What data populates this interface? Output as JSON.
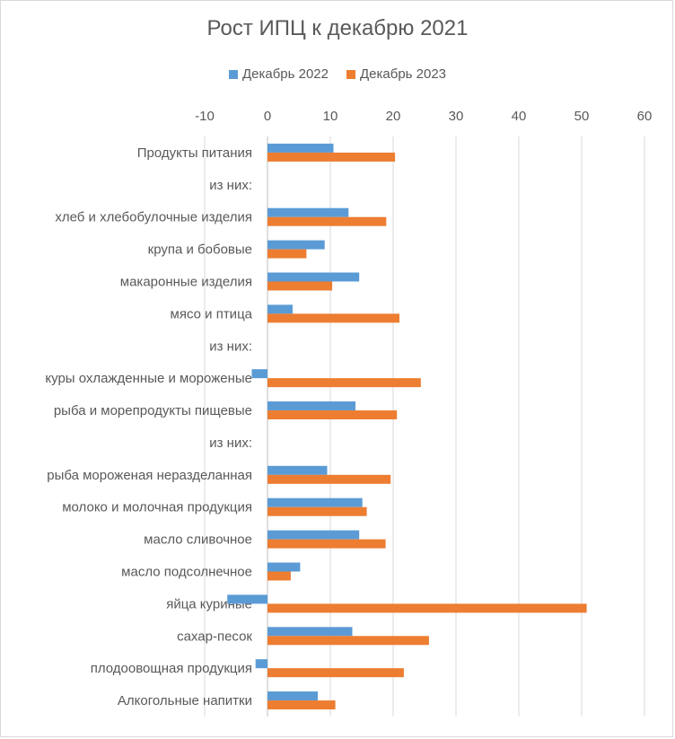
{
  "chart_data": {
    "type": "bar",
    "orientation": "horizontal",
    "title": "Рост ИПЦ к декабрю  2021",
    "xlabel": "",
    "ylabel": "",
    "xlim": [
      -10,
      60
    ],
    "ticks": [
      -10,
      0,
      10,
      20,
      30,
      40,
      50,
      60
    ],
    "grid": true,
    "legend_position": "top",
    "categories": [
      "Продукты питания",
      "из них:",
      "хлеб и хлебобулочные изделия",
      "крупа и бобовые",
      "макаронные изделия",
      "мясо и птица",
      "из них:",
      "куры охлажденные и мороженые",
      "рыба и морепродукты пищевые",
      "из них:",
      "рыба мороженая неразделанная",
      "молоко и молочная продукция",
      "масло сливочное",
      "масло подсолнечное",
      "яйца куриные",
      "сахар-песок",
      "плодоовощная продукция",
      "Алкогольные напитки"
    ],
    "series": [
      {
        "name": "Декабрь 2022",
        "color": "#5b9bd5",
        "values": [
          10.5,
          null,
          12.9,
          9.1,
          14.6,
          4.0,
          null,
          -2.5,
          14.0,
          null,
          9.5,
          15.1,
          14.6,
          5.2,
          -6.4,
          13.5,
          -1.9,
          8.0
        ]
      },
      {
        "name": "Декабрь 2023",
        "color": "#ed7d31",
        "values": [
          20.3,
          null,
          18.9,
          6.2,
          10.3,
          21.0,
          null,
          24.4,
          20.6,
          null,
          19.6,
          15.8,
          18.8,
          3.7,
          50.8,
          25.7,
          21.7,
          10.8
        ]
      }
    ]
  }
}
